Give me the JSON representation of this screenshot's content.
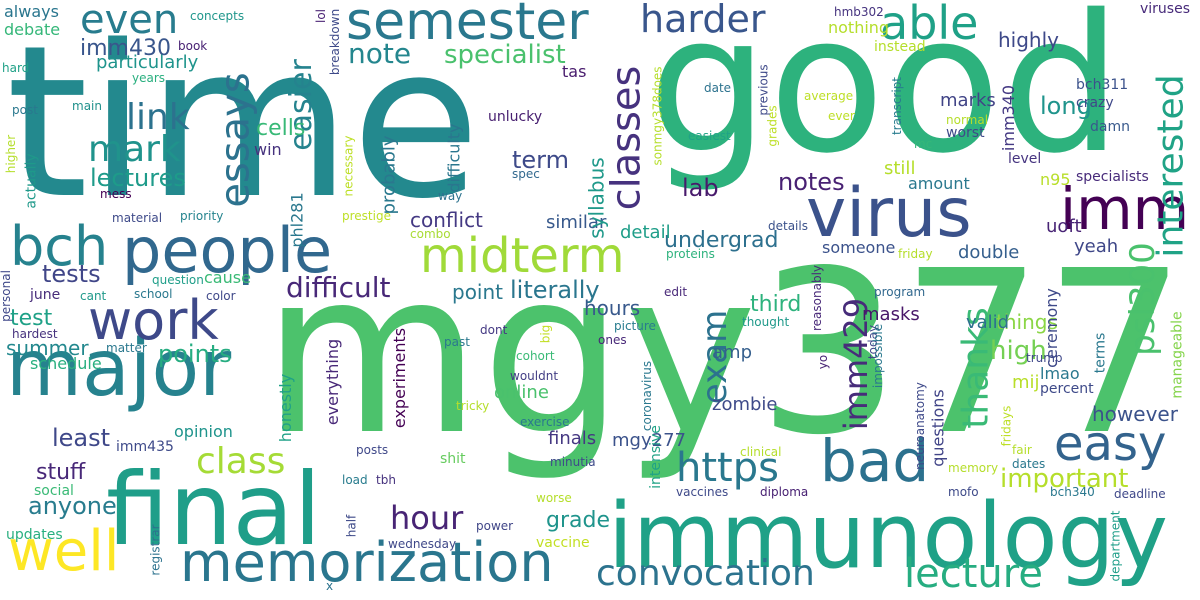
{
  "cloud": {
    "words": [
      {
        "text": "time",
        "color": "#23898e"
      },
      {
        "text": "good",
        "color": "#2db27d"
      },
      {
        "text": "mgy377",
        "color": "#4cc26c"
      },
      {
        "text": "immunology",
        "color": "#1fa187"
      },
      {
        "text": "final",
        "color": "#1f9e89"
      },
      {
        "text": "people",
        "color": "#31688e"
      },
      {
        "text": "major",
        "color": "#26828e"
      },
      {
        "text": "virus",
        "color": "#3b528b"
      },
      {
        "text": "semester",
        "color": "#2a788e"
      },
      {
        "text": "memorization",
        "color": "#2a768e"
      },
      {
        "text": "work",
        "color": "#3e4989"
      },
      {
        "text": "bch",
        "color": "#26828e"
      },
      {
        "text": "well",
        "color": "#fde725"
      },
      {
        "text": "midterm",
        "color": "#a0da39"
      },
      {
        "text": "imm",
        "color": "#440154"
      },
      {
        "text": "bad",
        "color": "#2c718e"
      },
      {
        "text": "easy",
        "color": "#33638d"
      },
      {
        "text": "https",
        "color": "#2a788e"
      },
      {
        "text": "convocation",
        "color": "#2c738e"
      },
      {
        "text": "lecture",
        "color": "#27ad81"
      },
      {
        "text": "able",
        "color": "#1fa187"
      },
      {
        "text": "harder",
        "color": "#39568c"
      },
      {
        "text": "even",
        "color": "#287c8e"
      },
      {
        "text": "essays",
        "color": "#2c728e"
      },
      {
        "text": "link",
        "color": "#2c728e"
      },
      {
        "text": "mark",
        "color": "#20938c"
      },
      {
        "text": "classes",
        "color": "#46327e"
      },
      {
        "text": "interested",
        "color": "#20a386"
      },
      {
        "text": "psl300",
        "color": "#4ac16d"
      },
      {
        "text": "imm429",
        "color": "#472c7a"
      },
      {
        "text": "exam",
        "color": "#2c728e"
      },
      {
        "text": "class",
        "color": "#a5db36"
      },
      {
        "text": "thanks",
        "color": "#3aba76"
      },
      {
        "text": "important",
        "color": "#b5de2b"
      },
      {
        "text": "hour",
        "color": "#482475"
      },
      {
        "text": "difficult",
        "color": "#482878"
      },
      {
        "text": "note",
        "color": "#24868e"
      },
      {
        "text": "specialist",
        "color": "#4ac16d"
      },
      {
        "text": "easier",
        "color": "#25838e"
      },
      {
        "text": "lectures",
        "color": "#1e9b8a"
      },
      {
        "text": "imm430",
        "color": "#39568c"
      },
      {
        "text": "particularly",
        "color": "#1f948c"
      },
      {
        "text": "cells",
        "color": "#38b977"
      },
      {
        "text": "long",
        "color": "#1f948c"
      },
      {
        "text": "highly",
        "color": "#3e4989"
      },
      {
        "text": "term",
        "color": "#3e4a89"
      },
      {
        "text": "lab",
        "color": "#481a6c"
      },
      {
        "text": "notes",
        "color": "#482173"
      },
      {
        "text": "conflict",
        "color": "#443983"
      },
      {
        "text": "similar",
        "color": "#38598c"
      },
      {
        "text": "undergrad",
        "color": "#2d708e"
      },
      {
        "text": "detail",
        "color": "#1f9e89"
      },
      {
        "text": "tests",
        "color": "#404688"
      },
      {
        "text": "literally",
        "color": "#2a768e"
      },
      {
        "text": "point",
        "color": "#2a788e"
      },
      {
        "text": "hours",
        "color": "#38598c"
      },
      {
        "text": "points",
        "color": "#26ad81"
      },
      {
        "text": "summer",
        "color": "#23888e"
      },
      {
        "text": "test",
        "color": "#1fa187"
      },
      {
        "text": "least",
        "color": "#3f4889"
      },
      {
        "text": "stuff",
        "color": "#482878"
      },
      {
        "text": "anyone",
        "color": "#287c8e"
      },
      {
        "text": "grade",
        "color": "#1f948c"
      },
      {
        "text": "third",
        "color": "#2db27d"
      },
      {
        "text": "masks",
        "color": "#481769"
      },
      {
        "text": "things",
        "color": "#8bd646"
      },
      {
        "text": "high",
        "color": "#75d054"
      },
      {
        "text": "valid",
        "color": "#2d708e"
      },
      {
        "text": "however",
        "color": "#3b528b"
      },
      {
        "text": "zombie",
        "color": "#3e4a89"
      },
      {
        "text": "amp",
        "color": "#355f8d"
      },
      {
        "text": "finals",
        "color": "#453882"
      },
      {
        "text": "online",
        "color": "#4ac16d"
      },
      {
        "text": "mgy277",
        "color": "#3b528b"
      },
      {
        "text": "double",
        "color": "#355f8d"
      },
      {
        "text": "yeah",
        "color": "#3f4788"
      },
      {
        "text": "still",
        "color": "#b5de2b"
      },
      {
        "text": "amount",
        "color": "#2a788e"
      },
      {
        "text": "marks",
        "color": "#414487"
      },
      {
        "text": "imm340",
        "color": "#443983"
      },
      {
        "text": "crazy",
        "color": "#3f4889"
      },
      {
        "text": "bch311",
        "color": "#3b528b"
      },
      {
        "text": "level",
        "color": "#463480"
      },
      {
        "text": "specialists",
        "color": "#472a7a"
      },
      {
        "text": "n95",
        "color": "#b8de29"
      },
      {
        "text": "uoft",
        "color": "#482475"
      },
      {
        "text": "someone",
        "color": "#3b528b"
      },
      {
        "text": "ceremony",
        "color": "#3e4989"
      },
      {
        "text": "mij",
        "color": "#b8de29"
      },
      {
        "text": "lmao",
        "color": "#2a788e"
      },
      {
        "text": "percent",
        "color": "#3e4a89"
      },
      {
        "text": "terms",
        "color": "#2a788e"
      },
      {
        "text": "manageable",
        "color": "#84d44b"
      },
      {
        "text": "nothing",
        "color": "#b5de2b"
      },
      {
        "text": "instead",
        "color": "#b5de2b"
      },
      {
        "text": "hmb302",
        "color": "#46337f"
      },
      {
        "text": "viruses",
        "color": "#472a7a"
      },
      {
        "text": "mc",
        "color": "#35b779"
      },
      {
        "text": "always",
        "color": "#2a768e"
      },
      {
        "text": "debate",
        "color": "#35b779"
      },
      {
        "text": "concepts",
        "color": "#1f968b"
      },
      {
        "text": "book",
        "color": "#482173"
      },
      {
        "text": "hard",
        "color": "#1fa187"
      },
      {
        "text": "years",
        "color": "#29af7f"
      },
      {
        "text": "tas",
        "color": "#481b6d"
      },
      {
        "text": "post",
        "color": "#2a788e"
      },
      {
        "text": "main",
        "color": "#21918c"
      },
      {
        "text": "unlucky",
        "color": "#482071"
      },
      {
        "text": "syllabus",
        "color": "#1f998a"
      },
      {
        "text": "difficulty",
        "color": "#2a768e"
      },
      {
        "text": "date",
        "color": "#2c728e"
      },
      {
        "text": "easiest",
        "color": "#20a386"
      },
      {
        "text": "grades",
        "color": "#bddf26"
      },
      {
        "text": "average",
        "color": "#bddf26"
      },
      {
        "text": "ever",
        "color": "#bddf26"
      },
      {
        "text": "normal",
        "color": "#b5de2b"
      },
      {
        "text": "worst",
        "color": "#3e4989"
      },
      {
        "text": "damn",
        "color": "#38598c"
      },
      {
        "text": "spec",
        "color": "#31688e"
      },
      {
        "text": "mess",
        "color": "#440154"
      },
      {
        "text": "way",
        "color": "#2c728e"
      },
      {
        "text": "probably",
        "color": "#2a788e"
      },
      {
        "text": "material",
        "color": "#3e4a89"
      },
      {
        "text": "priority",
        "color": "#25848e"
      },
      {
        "text": "prestige",
        "color": "#bddf26"
      },
      {
        "text": "combo",
        "color": "#a8db34"
      },
      {
        "text": "details",
        "color": "#3b528b"
      },
      {
        "text": "friday",
        "color": "#b5de2b"
      },
      {
        "text": "proteins",
        "color": "#2db27d"
      },
      {
        "text": "question",
        "color": "#1f9e89"
      },
      {
        "text": "cause",
        "color": "#3aba76"
      },
      {
        "text": "june",
        "color": "#472c7a"
      },
      {
        "text": "cant",
        "color": "#1f998a"
      },
      {
        "text": "school",
        "color": "#2a788e"
      },
      {
        "text": "color",
        "color": "#3f4889"
      },
      {
        "text": "hardest",
        "color": "#46327e"
      },
      {
        "text": "matter",
        "color": "#2a788e"
      },
      {
        "text": "schedule",
        "color": "#29af7f"
      },
      {
        "text": "big",
        "color": "#c2df23"
      },
      {
        "text": "cohort",
        "color": "#3aba76"
      },
      {
        "text": "past",
        "color": "#2a788e"
      },
      {
        "text": "ones",
        "color": "#482878"
      },
      {
        "text": "picture",
        "color": "#287c8e"
      },
      {
        "text": "thought",
        "color": "#1f998a"
      },
      {
        "text": "today",
        "color": "#3f4889"
      },
      {
        "text": "program",
        "color": "#31688e"
      },
      {
        "text": "edit",
        "color": "#482878"
      },
      {
        "text": "dont",
        "color": "#443983"
      },
      {
        "text": "opinion",
        "color": "#1f948c"
      },
      {
        "text": "imm435",
        "color": "#3e4a89"
      },
      {
        "text": "honestly",
        "color": "#1fa187"
      },
      {
        "text": "experiments",
        "color": "#440154"
      },
      {
        "text": "everything",
        "color": "#482878"
      },
      {
        "text": "wouldnt",
        "color": "#433e85"
      },
      {
        "text": "tricky",
        "color": "#b5de2b"
      },
      {
        "text": "exercise",
        "color": "#2a788e"
      },
      {
        "text": "minutia",
        "color": "#3e4a89"
      },
      {
        "text": "shit",
        "color": "#65cb5e"
      },
      {
        "text": "posts",
        "color": "#3f4889"
      },
      {
        "text": "social",
        "color": "#3aba76"
      },
      {
        "text": "updates",
        "color": "#29af7f"
      },
      {
        "text": "load",
        "color": "#287c8e"
      },
      {
        "text": "tbh",
        "color": "#46327e"
      },
      {
        "text": "worse",
        "color": "#b5de2b"
      },
      {
        "text": "vaccines",
        "color": "#3e4989"
      },
      {
        "text": "diploma",
        "color": "#482173"
      },
      {
        "text": "power",
        "color": "#404688"
      },
      {
        "text": "wednesday",
        "color": "#3f4889"
      },
      {
        "text": "vaccine",
        "color": "#c2df23"
      },
      {
        "text": "registrar",
        "color": "#2c728e"
      },
      {
        "text": "half",
        "color": "#3e4a89"
      },
      {
        "text": "x",
        "color": "#2c728e"
      },
      {
        "text": "clinical",
        "color": "#b5de2b"
      },
      {
        "text": "memory",
        "color": "#b5de2b"
      },
      {
        "text": "fair",
        "color": "#b5de2b"
      },
      {
        "text": "dates",
        "color": "#2a788e"
      },
      {
        "text": "mofo",
        "color": "#3e4a89"
      },
      {
        "text": "bch340",
        "color": "#2a788e"
      },
      {
        "text": "deadline",
        "color": "#3f4889"
      },
      {
        "text": "department",
        "color": "#1f9e89"
      },
      {
        "text": "fridays",
        "color": "#bddf26"
      },
      {
        "text": "neuroanatomy",
        "color": "#3e4989"
      },
      {
        "text": "impossible",
        "color": "#2a788e"
      },
      {
        "text": "reasonably",
        "color": "#482878"
      },
      {
        "text": "coronavirus",
        "color": "#2a788e"
      },
      {
        "text": "intensive",
        "color": "#20a386"
      },
      {
        "text": "questions",
        "color": "#414487"
      },
      {
        "text": "yo",
        "color": "#482475"
      },
      {
        "text": "trump",
        "color": "#3f4889"
      },
      {
        "text": "personal",
        "color": "#3f4889"
      },
      {
        "text": "necessary",
        "color": "#bddf26"
      },
      {
        "text": "phl281",
        "color": "#2a788e"
      },
      {
        "text": "actually",
        "color": "#1f998a"
      },
      {
        "text": "higher",
        "color": "#b5de2b"
      },
      {
        "text": "win",
        "color": "#46327e"
      },
      {
        "text": "lol",
        "color": "#482173"
      },
      {
        "text": "breakdown",
        "color": "#3e4a89"
      },
      {
        "text": "sonmgy378does",
        "color": "#b5de2b"
      },
      {
        "text": "previous",
        "color": "#3e4989"
      },
      {
        "text": "transcript",
        "color": "#287c8e"
      }
    ]
  }
}
